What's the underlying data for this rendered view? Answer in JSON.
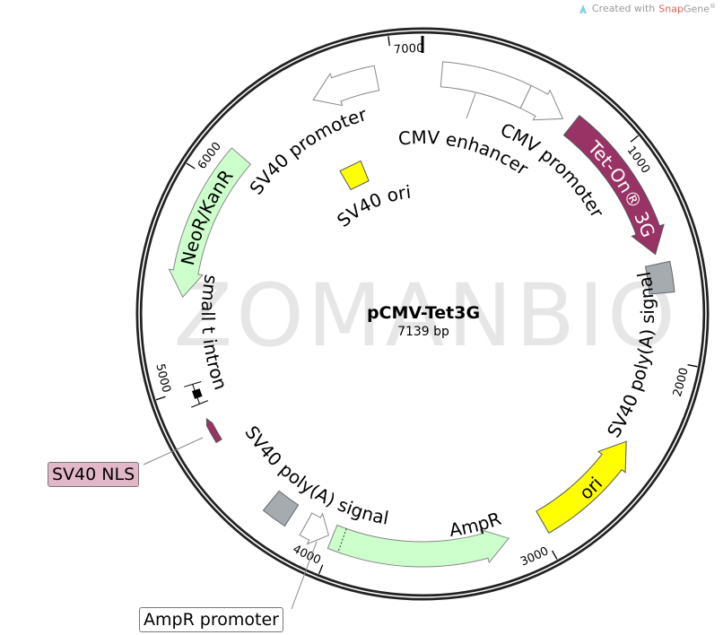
{
  "credit": {
    "prefix": "Created with",
    "brand": "Snap",
    "brand_suffix": "Gene",
    "mark": "®"
  },
  "plasmid": {
    "name": "pCMV-Tet3G",
    "length_label": "7139 bp",
    "length_bp": 7139
  },
  "watermark": "ZOMANBIO",
  "ticks": [
    {
      "bp": 1000,
      "label": "1000"
    },
    {
      "bp": 2000,
      "label": "2000"
    },
    {
      "bp": 3000,
      "label": "3000"
    },
    {
      "bp": 4000,
      "label": "4000"
    },
    {
      "bp": 5000,
      "label": "5000"
    },
    {
      "bp": 6000,
      "label": "6000"
    },
    {
      "bp": 7000,
      "label": "7000"
    }
  ],
  "features": [
    {
      "id": "cmv-enhancer",
      "label": "CMV enhancer",
      "start": 91,
      "end": 505,
      "shape": "bar",
      "direction": 1,
      "color": "#ffffff"
    },
    {
      "id": "cmv-promoter",
      "label": "CMV promoter",
      "start": 505,
      "end": 708,
      "shape": "arrow",
      "direction": 1,
      "color": "#ffffff"
    },
    {
      "id": "tet-on-3g",
      "label": "Tet-On® 3G",
      "start": 760,
      "end": 1500,
      "shape": "arrow",
      "direction": 1,
      "color": "#993366"
    },
    {
      "id": "sv40-polya-signal-1",
      "label": "SV40 poly(A) signal",
      "start": 1547,
      "end": 1686,
      "shape": "box",
      "direction": 0,
      "color": "#a6abb0"
    },
    {
      "id": "ori",
      "label": "ori",
      "start": 2420,
      "end": 2975,
      "shape": "arrow",
      "direction": -1,
      "color": "#ffff00"
    },
    {
      "id": "ampr",
      "label": "AmpR",
      "start": 3153,
      "end": 4006,
      "shape": "arrow",
      "direction": -1,
      "color": "#ccffcc"
    },
    {
      "id": "ampr-promoter",
      "label": "AmpR promoter",
      "start": 4025,
      "end": 4145,
      "shape": "arrow",
      "direction": -1,
      "color": "#ffffff"
    },
    {
      "id": "sv40-polya-signal-2",
      "label": "SV40 poly(A) signal",
      "start": 4224,
      "end": 4343,
      "shape": "box",
      "direction": 0,
      "color": "#a6abb0"
    },
    {
      "id": "sv40-nls",
      "label": "SV40 NLS",
      "start": 4720,
      "end": 4840,
      "shape": "thin",
      "direction": 1,
      "color": "#993366"
    },
    {
      "id": "small-t-intron",
      "label": "small t intron",
      "start": 4918,
      "end": 5017,
      "shape": "intron",
      "direction": 0,
      "color": "#000000"
    },
    {
      "id": "neor-kanr",
      "label": "NeoR/KanR",
      "start": 5434,
      "end": 6168,
      "shape": "arrow",
      "direction": -1,
      "color": "#ccffcc"
    },
    {
      "id": "sv40-ori",
      "label": "SV40 ori",
      "start": 6544,
      "end": 6703,
      "shape": "innerbox",
      "direction": 0,
      "color": "#ffff00"
    },
    {
      "id": "sv40-promoter",
      "label": "SV40 promoter",
      "start": 6603,
      "end": 6921,
      "shape": "arrow",
      "direction": -1,
      "color": "#ffffff"
    }
  ]
}
